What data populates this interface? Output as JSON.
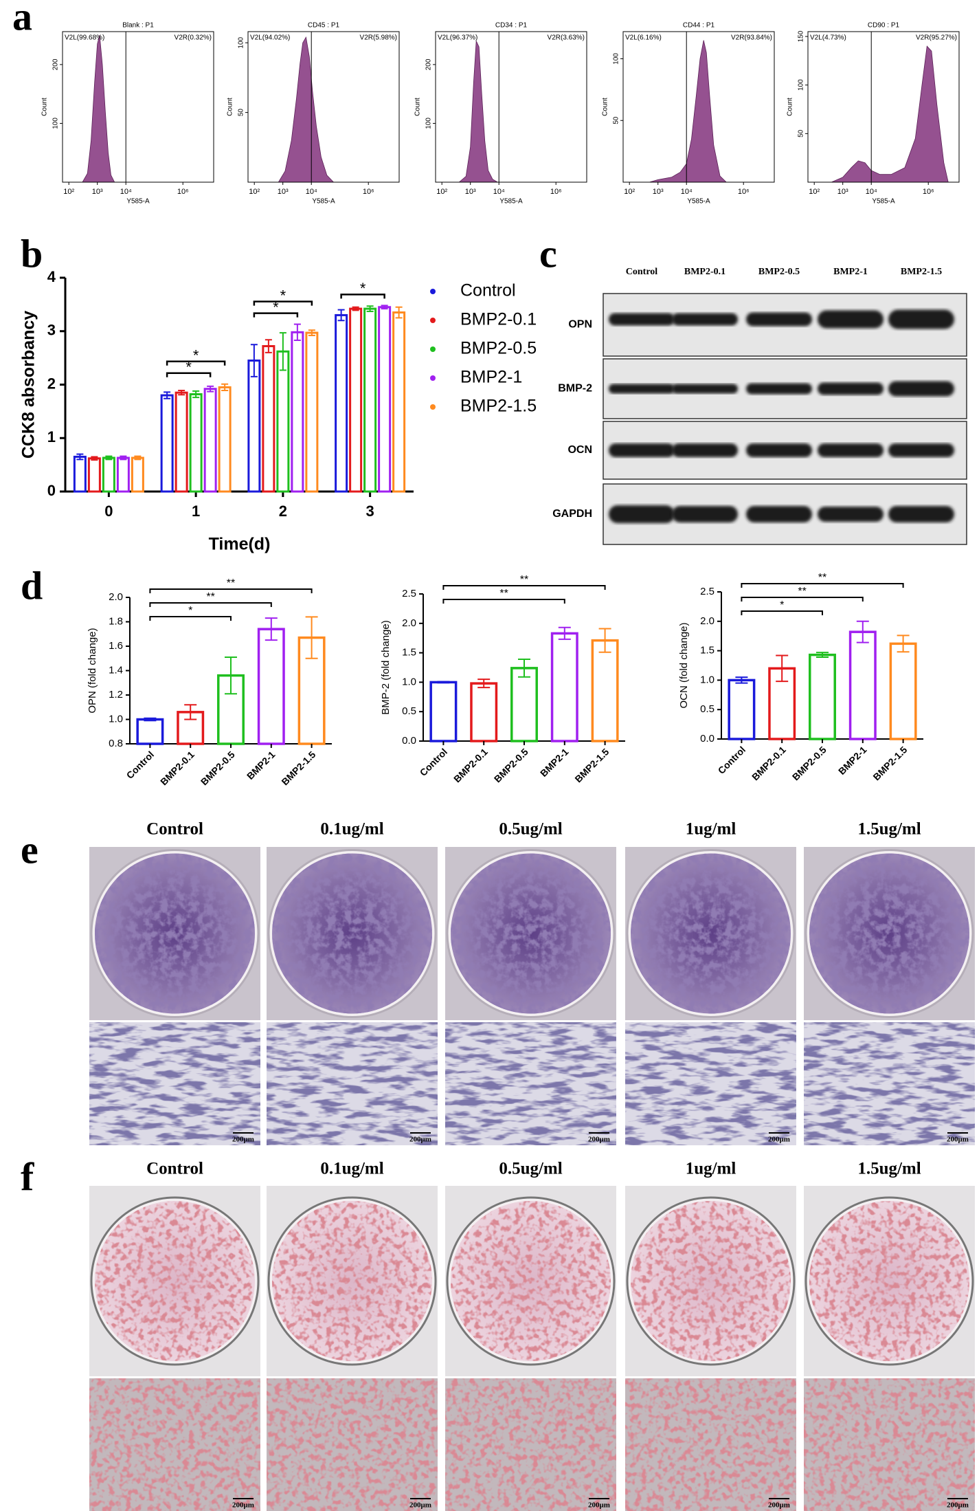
{
  "panel_labels": [
    "a",
    "b",
    "c",
    "d",
    "e",
    "f"
  ],
  "chart_data": [
    {
      "type": "area",
      "title": "Blank : P1",
      "gates": [
        "V2L(99.68%)",
        "V2R(0.32%)"
      ],
      "threshold": 10000,
      "xlabel": "Y585-A",
      "ylabel": "Count",
      "xscale": "log",
      "xlim": [
        60,
        12000000
      ],
      "xticks": [
        {
          "value": 100,
          "label": "10²"
        },
        {
          "value": 1000,
          "label": "10³"
        },
        {
          "value": 10000,
          "label": "10⁴"
        },
        {
          "value": 1000000,
          "label": "10⁶"
        }
      ],
      "ylim": [
        0,
        256
      ],
      "yticks": [
        100,
        200
      ],
      "color": "#8a3e84",
      "x": [
        300,
        450,
        600,
        800,
        1000,
        1200,
        1500,
        1900,
        2400,
        3000,
        4000
      ],
      "values": [
        0,
        15,
        70,
        170,
        235,
        250,
        200,
        120,
        50,
        12,
        0
      ]
    },
    {
      "type": "area",
      "title": "CD45 : P1",
      "gates": [
        "V2L(94.02%)",
        "V2R(5.98%)"
      ],
      "threshold": 10000,
      "xlabel": "Y585-A",
      "ylabel": "Count",
      "xscale": "log",
      "xlim": [
        60,
        12000000
      ],
      "xticks": [
        {
          "value": 100,
          "label": "10²"
        },
        {
          "value": 1000,
          "label": "10³"
        },
        {
          "value": 10000,
          "label": "10⁴"
        },
        {
          "value": 1000000,
          "label": "10⁶"
        }
      ],
      "ylim": [
        0,
        108
      ],
      "yticks": [
        50,
        100
      ],
      "color": "#8a3e84",
      "x": [
        700,
        1200,
        2000,
        3000,
        4000,
        5000,
        6500,
        8500,
        11000,
        15000,
        22000,
        35000,
        60000
      ],
      "values": [
        0,
        8,
        30,
        60,
        85,
        100,
        104,
        90,
        65,
        40,
        18,
        5,
        0
      ]
    },
    {
      "type": "area",
      "title": "CD34 : P1",
      "gates": [
        "V2L(96.37%)",
        "V2R(3.63%)"
      ],
      "threshold": 10000,
      "xlabel": "Y585-A",
      "ylabel": "Count",
      "xscale": "log",
      "xlim": [
        60,
        12000000
      ],
      "xticks": [
        {
          "value": 100,
          "label": "10²"
        },
        {
          "value": 1000,
          "label": "10³"
        },
        {
          "value": 10000,
          "label": "10⁴"
        },
        {
          "value": 1000000,
          "label": "10⁶"
        }
      ],
      "ylim": [
        0,
        256
      ],
      "yticks": [
        100,
        200
      ],
      "color": "#8a3e84",
      "x": [
        400,
        700,
        1000,
        1300,
        1600,
        2000,
        2500,
        3200,
        4200,
        6000,
        9000
      ],
      "values": [
        0,
        10,
        60,
        170,
        240,
        230,
        150,
        70,
        20,
        5,
        0
      ]
    },
    {
      "type": "area",
      "title": "CD44 : P1",
      "gates": [
        "V2L(6.16%)",
        "V2R(93.84%)"
      ],
      "threshold": 10000,
      "xlabel": "Y585-A",
      "ylabel": "Count",
      "xscale": "log",
      "xlim": [
        60,
        12000000
      ],
      "xticks": [
        {
          "value": 100,
          "label": "10²"
        },
        {
          "value": 1000,
          "label": "10³"
        },
        {
          "value": 10000,
          "label": "10⁴"
        },
        {
          "value": 1000000,
          "label": "10⁶"
        }
      ],
      "ylim": [
        0,
        122
      ],
      "yticks": [
        50,
        100
      ],
      "color": "#8a3e84",
      "x": [
        500,
        1000,
        3000,
        6000,
        10000,
        15000,
        22000,
        30000,
        40000,
        50000,
        65000,
        90000,
        150000,
        250000
      ],
      "values": [
        0,
        2,
        4,
        8,
        15,
        35,
        70,
        100,
        115,
        105,
        70,
        30,
        5,
        0
      ]
    },
    {
      "type": "area",
      "title": "CD90 : P1",
      "gates": [
        "V2L(4.73%)",
        "V2R(95.27%)"
      ],
      "threshold": 10000,
      "xlabel": "Y585-A",
      "ylabel": "Count",
      "xscale": "log",
      "xlim": [
        60,
        12000000
      ],
      "xticks": [
        {
          "value": 100,
          "label": "10²"
        },
        {
          "value": 1000,
          "label": "10³"
        },
        {
          "value": 10000,
          "label": "10⁴"
        },
        {
          "value": 1000000,
          "label": "10⁶"
        }
      ],
      "ylim": [
        0,
        155
      ],
      "yticks": [
        50,
        100,
        150
      ],
      "color": "#8a3e84",
      "x": [
        400,
        1000,
        2000,
        3500,
        6000,
        10000,
        20000,
        50000,
        150000,
        350000,
        600000,
        900000,
        1300000,
        2000000,
        3500000,
        5000000
      ],
      "values": [
        0,
        5,
        15,
        22,
        20,
        12,
        8,
        8,
        15,
        45,
        100,
        140,
        135,
        80,
        20,
        0
      ]
    },
    {
      "type": "grouped_bar",
      "xlabel": "Time(d)",
      "ylabel": "CCK8 absorbancy",
      "categories": [
        "0",
        "1",
        "2",
        "3"
      ],
      "ylim": [
        0,
        4
      ],
      "yticks": [
        0,
        1,
        2,
        3,
        4
      ],
      "legend": "right",
      "series": [
        {
          "name": "Control",
          "color": "#1a1adb",
          "values": [
            0.65,
            1.8,
            2.45,
            3.3
          ],
          "errors": [
            0.05,
            0.06,
            0.3,
            0.1
          ]
        },
        {
          "name": "BMP2-0.1",
          "color": "#e31a1c",
          "values": [
            0.62,
            1.85,
            2.72,
            3.42
          ],
          "errors": [
            0.03,
            0.04,
            0.12,
            0.03
          ]
        },
        {
          "name": "BMP2-0.5",
          "color": "#1fbf1f",
          "values": [
            0.63,
            1.82,
            2.62,
            3.42
          ],
          "errors": [
            0.03,
            0.06,
            0.35,
            0.05
          ]
        },
        {
          "name": "BMP2-1",
          "color": "#a020f0",
          "values": [
            0.63,
            1.92,
            2.98,
            3.45
          ],
          "errors": [
            0.03,
            0.05,
            0.15,
            0.03
          ]
        },
        {
          "name": "BMP2-1.5",
          "color": "#ff8a1f",
          "values": [
            0.63,
            1.95,
            2.97,
            3.35
          ],
          "errors": [
            0.03,
            0.06,
            0.05,
            0.1
          ]
        }
      ],
      "comparisons": [
        {
          "category": "1",
          "groups": [
            "Control",
            "BMP2-1"
          ],
          "label": "*"
        },
        {
          "category": "1",
          "groups": [
            "Control",
            "BMP2-1.5"
          ],
          "label": "*"
        },
        {
          "category": "2",
          "groups": [
            "Control",
            "BMP2-1"
          ],
          "label": "*"
        },
        {
          "category": "2",
          "groups": [
            "Control",
            "BMP2-1.5"
          ],
          "label": "*"
        },
        {
          "category": "3",
          "groups": [
            "Control",
            "BMP2-1"
          ],
          "label": "*"
        }
      ]
    },
    {
      "type": "bar",
      "ylabel": "OPN (fold change)",
      "categories": [
        "Control",
        "BMP2-0.1",
        "BMP2-0.5",
        "BMP2-1",
        "BMP2-1.5"
      ],
      "colors": [
        "#1a1adb",
        "#e31a1c",
        "#1fbf1f",
        "#a020f0",
        "#ff8a1f"
      ],
      "values": [
        1.0,
        1.06,
        1.36,
        1.74,
        1.67
      ],
      "errors": [
        0.01,
        0.06,
        0.15,
        0.09,
        0.17
      ],
      "ylim": [
        0.8,
        2.0
      ],
      "yticks": [
        0.8,
        {
          "value": 1,
          "label": "1.0"
        },
        1.2,
        1.4,
        1.6,
        1.8,
        {
          "value": 2,
          "label": "2.0"
        }
      ],
      "comparisons": [
        {
          "groups": [
            "Control",
            "BMP2-0.5"
          ],
          "label": "*"
        },
        {
          "groups": [
            "Control",
            "BMP2-1"
          ],
          "label": "**"
        },
        {
          "groups": [
            "Control",
            "BMP2-1.5"
          ],
          "label": "**"
        }
      ]
    },
    {
      "type": "bar",
      "ylabel": "BMP-2 (fold change)",
      "categories": [
        "Control",
        "BMP2-0.1",
        "BMP2-0.5",
        "BMP2-1",
        "BMP2-1.5"
      ],
      "colors": [
        "#1a1adb",
        "#e31a1c",
        "#1fbf1f",
        "#a020f0",
        "#ff8a1f"
      ],
      "values": [
        1.0,
        0.98,
        1.24,
        1.83,
        1.71
      ],
      "errors": [
        0.01,
        0.07,
        0.15,
        0.1,
        0.2
      ],
      "ylim": [
        0,
        2.5
      ],
      "yticks": [
        {
          "value": 0,
          "label": "0.0"
        },
        0.5,
        {
          "value": 1,
          "label": "1.0"
        },
        1.5,
        {
          "value": 2,
          "label": "2.0"
        },
        2.5
      ],
      "comparisons": [
        {
          "groups": [
            "Control",
            "BMP2-1"
          ],
          "label": "**"
        },
        {
          "groups": [
            "Control",
            "BMP2-1.5"
          ],
          "label": "**"
        }
      ]
    },
    {
      "type": "bar",
      "ylabel": "OCN (fold change)",
      "categories": [
        "Control",
        "BMP2-0.1",
        "BMP2-0.5",
        "BMP2-1",
        "BMP2-1.5"
      ],
      "colors": [
        "#1a1adb",
        "#e31a1c",
        "#1fbf1f",
        "#a020f0",
        "#ff8a1f"
      ],
      "values": [
        1.0,
        1.2,
        1.43,
        1.82,
        1.62
      ],
      "errors": [
        0.05,
        0.22,
        0.04,
        0.18,
        0.14
      ],
      "ylim": [
        0,
        2.5
      ],
      "yticks": [
        {
          "value": 0,
          "label": "0.0"
        },
        0.5,
        {
          "value": 1,
          "label": "1.0"
        },
        1.5,
        {
          "value": 2,
          "label": "2.0"
        },
        2.5
      ],
      "comparisons": [
        {
          "groups": [
            "Control",
            "BMP2-0.5"
          ],
          "label": "*"
        },
        {
          "groups": [
            "Control",
            "BMP2-1"
          ],
          "label": "**"
        },
        {
          "groups": [
            "Control",
            "BMP2-1.5"
          ],
          "label": "**"
        }
      ]
    }
  ],
  "western_blot": {
    "columns": [
      "Control",
      "BMP2-0.1",
      "BMP2-0.5",
      "BMP2-1",
      "BMP2-1.5"
    ],
    "rows": [
      "OPN",
      "BMP-2",
      "OCN",
      "GAPDH"
    ]
  },
  "alp_staining": {
    "columns": [
      "Control",
      "0.1ug/ml",
      "0.5ug/ml",
      "1ug/ml",
      "1.5ug/ml"
    ],
    "scale_bar": "200μm"
  },
  "ars_staining": {
    "columns": [
      "Control",
      "0.1ug/ml",
      "0.5ug/ml",
      "1ug/ml",
      "1.5ug/ml"
    ],
    "scale_bar": "200μm"
  }
}
